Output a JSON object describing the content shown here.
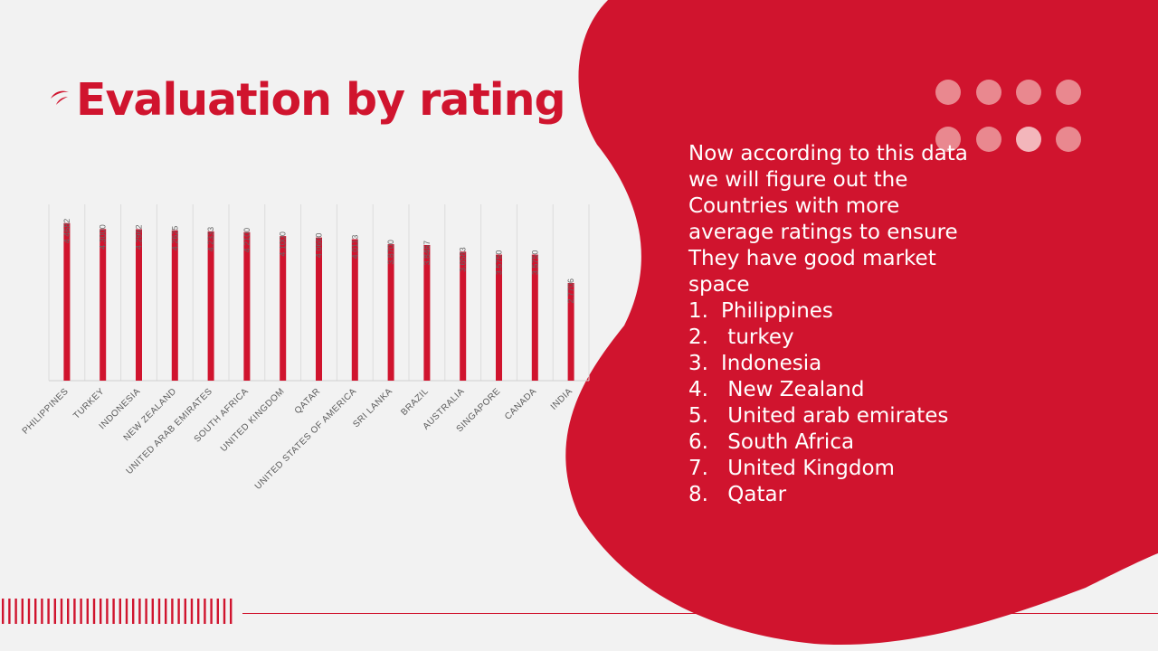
{
  "title": "Evaluation by rating",
  "colors": {
    "accent": "#d0142e",
    "background": "#f2f2f2",
    "text_on_panel": "#ffffff",
    "dot": "#e9888f",
    "dot_highlight": "#f3b6bb"
  },
  "panel": {
    "intro": "Now according to this data we will figure out the Countries with more average ratings to ensure They have good market space",
    "list": [
      {
        "num": "1.",
        "label": "Philippines"
      },
      {
        "num": "2.",
        "label": " turkey"
      },
      {
        "num": "3.",
        "label": "Indonesia"
      },
      {
        "num": "4.",
        "label": " New Zealand"
      },
      {
        "num": "5.",
        "label": " United arab emirates"
      },
      {
        "num": "6.",
        "label": " South Africa"
      },
      {
        "num": "7.",
        "label": " United Kingdom"
      },
      {
        "num": "8.",
        "label": " Qatar"
      }
    ]
  },
  "chart_data": {
    "type": "bar",
    "categories": [
      "PHILIPPINES",
      "TURKEY",
      "INDONESIA",
      "NEW ZEALAND",
      "UNITED ARAB EMIRATES",
      "SOUTH AFRICA",
      "UNITED KINGDOM",
      "QATAR",
      "UNITED STATES OF AMERICA",
      "SRI LANKA",
      "BRAZIL",
      "AUSTRALIA",
      "SINGAPORE",
      "CANADA",
      "INDIA"
    ],
    "values": [
      4.4682,
      4.3,
      4.2962,
      4.2625,
      4.2333,
      4.21,
      4.1,
      4.06,
      4.0113,
      3.87,
      3.8467,
      3.6583,
      3.575,
      3.575,
      2.7706
    ],
    "value_labels": [
      "4.4682",
      "4.3000",
      "4.2962",
      "4.2625",
      "4.2333",
      "4.2100",
      "4.1000",
      "4.0600",
      "4.0113",
      "3.8700",
      "3.8467",
      "3.6583",
      "3.5750",
      "3.5750",
      "2.7706"
    ],
    "title": "",
    "xlabel": "",
    "ylabel": "",
    "ylim": [
      0,
      5
    ],
    "grid": "vertical",
    "legend": "none",
    "bar_color": "#d0142e"
  }
}
